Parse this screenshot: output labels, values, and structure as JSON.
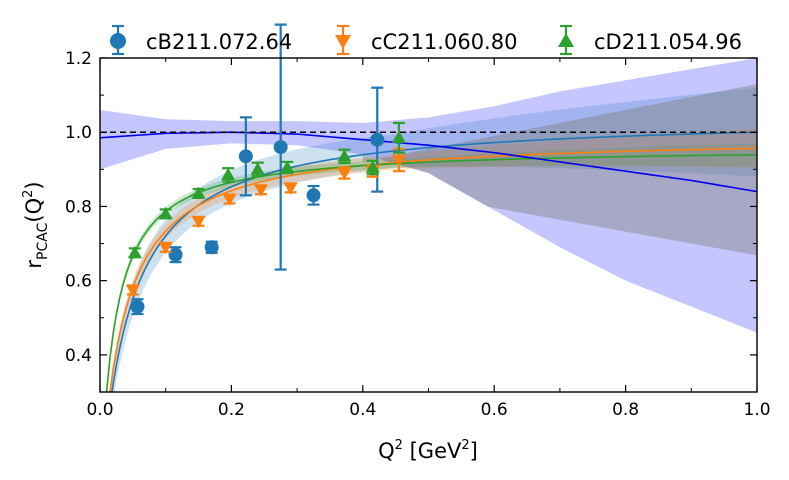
{
  "chart_data": {
    "type": "scatter",
    "ylabel": {
      "base": "r",
      "sub": "PCAC",
      "paren": "(Q",
      "sup": "2",
      "close": ")"
    },
    "xlabel": {
      "base": "Q",
      "sup1": "2",
      "mid": " [GeV",
      "sup2": "2",
      "close": "]"
    },
    "xlim": [
      0.0,
      1.0
    ],
    "ylim": [
      0.3,
      1.2
    ],
    "xticks": [
      0.0,
      0.2,
      0.4,
      0.6,
      0.8,
      1.0
    ],
    "xtick_labels": [
      "0.0",
      "0.2",
      "0.4",
      "0.6",
      "0.8",
      "1.0"
    ],
    "yticks": [
      0.4,
      0.6,
      0.8,
      1.0,
      1.2
    ],
    "ytick_labels": [
      "0.4",
      "0.6",
      "0.8",
      "1.0",
      "1.2"
    ],
    "reference_line_y": 1.0,
    "legend_position": "top, above plot",
    "series": [
      {
        "name": "cB211.072.64",
        "color": "#1f77b4",
        "marker": "circle",
        "points": [
          {
            "x": 0.057,
            "y": 0.53,
            "err": 0.02
          },
          {
            "x": 0.115,
            "y": 0.67,
            "err": 0.02
          },
          {
            "x": 0.17,
            "y": 0.69,
            "err": 0.015
          },
          {
            "x": 0.222,
            "y": 0.935,
            "err": 0.105
          },
          {
            "x": 0.275,
            "y": 0.96,
            "err": 0.33
          },
          {
            "x": 0.325,
            "y": 0.83,
            "err": 0.025
          },
          {
            "x": 0.422,
            "y": 0.98,
            "err": 0.14
          }
        ],
        "fit": {
          "rmax": 1.045,
          "a": 0.045,
          "band": 0.045
        }
      },
      {
        "name": "cC211.060.80",
        "color": "#ff7f0e",
        "marker": "triangle-down",
        "points": [
          {
            "x": 0.05,
            "y": 0.575,
            "err": 0.012
          },
          {
            "x": 0.1,
            "y": 0.69,
            "err": 0.012
          },
          {
            "x": 0.15,
            "y": 0.76,
            "err": 0.012
          },
          {
            "x": 0.197,
            "y": 0.82,
            "err": 0.012
          },
          {
            "x": 0.245,
            "y": 0.845,
            "err": 0.012
          },
          {
            "x": 0.29,
            "y": 0.85,
            "err": 0.012
          },
          {
            "x": 0.372,
            "y": 0.89,
            "err": 0.015
          },
          {
            "x": 0.415,
            "y": 0.895,
            "err": 0.015
          },
          {
            "x": 0.455,
            "y": 0.925,
            "err": 0.03
          }
        ],
        "fit": {
          "rmax": 0.99,
          "a": 0.035,
          "band": 0.02
        }
      },
      {
        "name": "cD211.054.96",
        "color": "#2ca02c",
        "marker": "triangle-up",
        "points": [
          {
            "x": 0.053,
            "y": 0.675,
            "err": 0.012
          },
          {
            "x": 0.1,
            "y": 0.78,
            "err": 0.012
          },
          {
            "x": 0.15,
            "y": 0.835,
            "err": 0.012
          },
          {
            "x": 0.195,
            "y": 0.885,
            "err": 0.018
          },
          {
            "x": 0.24,
            "y": 0.9,
            "err": 0.018
          },
          {
            "x": 0.285,
            "y": 0.905,
            "err": 0.015
          },
          {
            "x": 0.372,
            "y": 0.935,
            "err": 0.018
          },
          {
            "x": 0.415,
            "y": 0.905,
            "err": 0.018
          },
          {
            "x": 0.455,
            "y": 0.985,
            "err": 0.04
          }
        ],
        "fit": {
          "rmax": 0.96,
          "a": 0.022,
          "band": 0.012
        }
      }
    ],
    "continuum": {
      "color": "#0000ee",
      "band_color": "#8080ff",
      "points": [
        {
          "x": 0.0,
          "y": 0.985,
          "lo": 0.9,
          "hi": 1.06
        },
        {
          "x": 0.1,
          "y": 0.997,
          "lo": 0.955,
          "hi": 1.035
        },
        {
          "x": 0.2,
          "y": 1.0,
          "lo": 0.97,
          "hi": 1.03
        },
        {
          "x": 0.3,
          "y": 0.995,
          "lo": 0.965,
          "hi": 1.03
        },
        {
          "x": 0.4,
          "y": 0.98,
          "lo": 0.94,
          "hi": 1.025
        },
        {
          "x": 0.5,
          "y": 0.965,
          "lo": 0.89,
          "hi": 1.04
        },
        {
          "x": 0.6,
          "y": 0.945,
          "lo": 0.79,
          "hi": 1.07
        },
        {
          "x": 0.7,
          "y": 0.92,
          "lo": 0.69,
          "hi": 1.11
        },
        {
          "x": 0.8,
          "y": 0.895,
          "lo": 0.6,
          "hi": 1.14
        },
        {
          "x": 0.9,
          "y": 0.87,
          "lo": 0.53,
          "hi": 1.17
        },
        {
          "x": 1.0,
          "y": 0.84,
          "lo": 0.46,
          "hi": 1.2
        }
      ],
      "line_color": "#3333cc",
      "grey_band_color": "#808080"
    }
  }
}
